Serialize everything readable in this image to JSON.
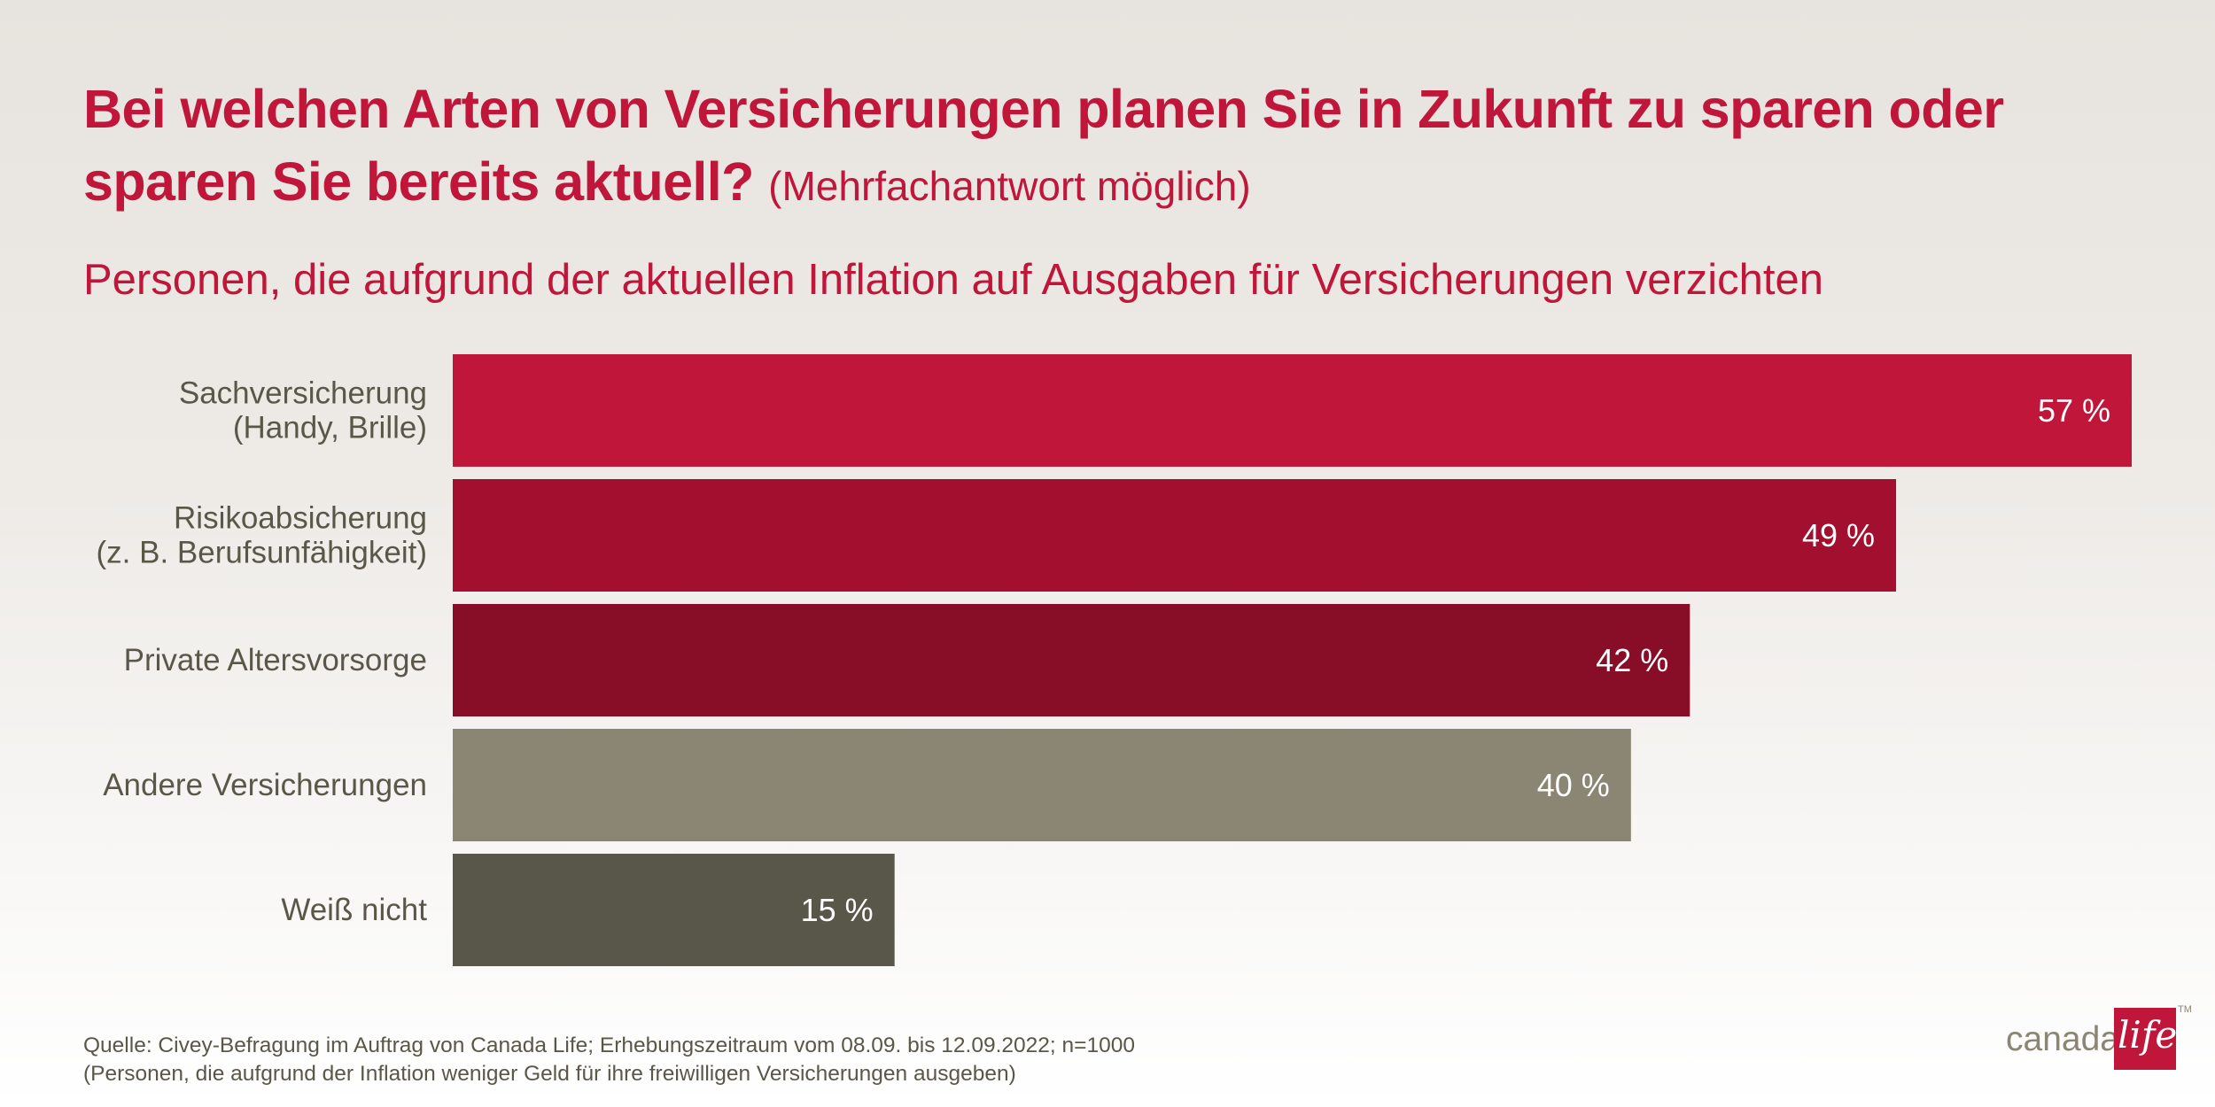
{
  "title": {
    "main": "Bei welchen Arten von Versicherungen planen Sie in Zukunft zu sparen oder sparen Sie bereits aktuell?",
    "note": "(Mehrfachantwort möglich)"
  },
  "subtitle": "Personen, die aufgrund der aktuellen Inflation auf Ausgaben für Versicherungen verzichten",
  "chart_data": {
    "type": "bar",
    "orientation": "horizontal",
    "subtitle": "Personen, die aufgrund der aktuellen Inflation auf Ausgaben für Versicherungen verzichten",
    "categories": [
      [
        "Sachversicherung",
        "(Handy, Brille)"
      ],
      [
        "Risikoabsicherung",
        "(z. B. Berufsunfähigkeit)"
      ],
      [
        "Private Altersvorsorge"
      ],
      [
        "Andere Versicherungen"
      ],
      [
        "Weiß nicht"
      ]
    ],
    "values": [
      57,
      49,
      42,
      40,
      15
    ],
    "value_labels": [
      "57 %",
      "49 %",
      "42 %",
      "40 %",
      "15 %"
    ],
    "unit": "%",
    "colors": [
      "#c0163a",
      "#a30f2e",
      "#880d27",
      "#8b8573",
      "#59564a"
    ],
    "grid": false,
    "legend": "none"
  },
  "footnote": {
    "source": "Quelle: Civey-Befragung im Auftrag von Canada Life; Erhebungszeitraum vom 08.09. bis 12.09.2022; n=1000",
    "note": "(Personen, die aufgrund der Inflation weniger Geld für ihre freiwilligen Versicherungen ausgeben)"
  },
  "logo": {
    "word": "canada",
    "script": "life",
    "tm": "TM",
    "color": "#c0163a"
  }
}
